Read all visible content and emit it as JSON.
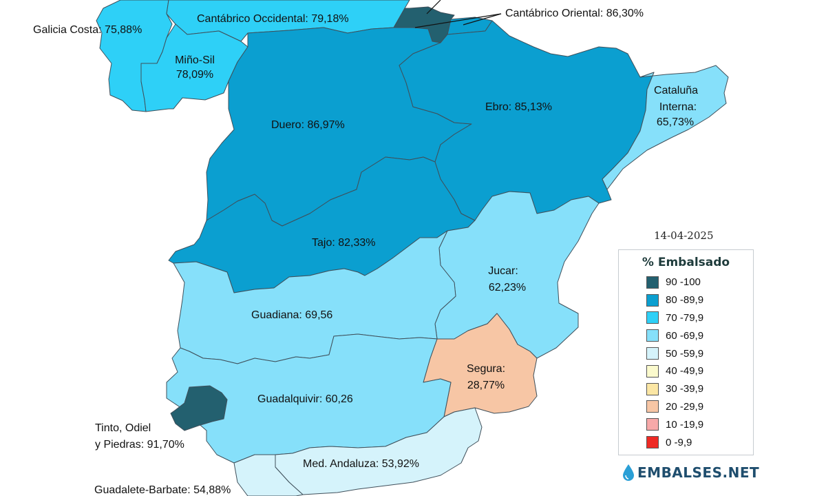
{
  "date": "14-04-2025",
  "legend": {
    "title": "% Embalsado",
    "items": [
      {
        "label": "90 -100",
        "color": "#23606f"
      },
      {
        "label": "80 -89,9",
        "color": "#0b9fd0"
      },
      {
        "label": "70 -79,9",
        "color": "#2ed0f7"
      },
      {
        "label": "60 -69,9",
        "color": "#86e0fa"
      },
      {
        "label": "50 -59,9",
        "color": "#d5f3fb"
      },
      {
        "label": "40 -49,9",
        "color": "#fbfacd"
      },
      {
        "label": "30 -39,9",
        "color": "#fbe6a4"
      },
      {
        "label": "20 -29,9",
        "color": "#f7c6a5"
      },
      {
        "label": "10 -19,9",
        "color": "#f7a9a9"
      },
      {
        "label": "0 -9,9",
        "color": "#ee2a24"
      }
    ]
  },
  "basins": {
    "galicia_costa": {
      "text": "Galicia Costa: 75,88%",
      "color": "#2ed0f7"
    },
    "cantabrico_occidental": {
      "text": "Cantábrico Occidental: 79,18%",
      "color": "#2ed0f7"
    },
    "cantabrico_oriental": {
      "text": "Cantábrico Oriental: 86,30%",
      "color": "#0b9fd0"
    },
    "basque_dark": {
      "color": "#23606f"
    },
    "mino_sil": {
      "line1": "Miño-Sil",
      "line2": "78,09%",
      "color": "#2ed0f7"
    },
    "duero": {
      "text": "Duero: 86,97%",
      "color": "#0b9fd0"
    },
    "ebro": {
      "text": "Ebro: 85,13%",
      "color": "#0b9fd0"
    },
    "cataluna_interna": {
      "line1": "Cataluña",
      "line2": "Interna:",
      "line3": "65,73%",
      "color": "#86e0fa"
    },
    "tajo": {
      "text": "Tajo: 82,33%",
      "color": "#0b9fd0"
    },
    "jucar": {
      "line1": "Jucar:",
      "line2": "62,23%",
      "color": "#86e0fa"
    },
    "guadiana": {
      "text": "Guadiana: 69,56",
      "color": "#86e0fa"
    },
    "segura": {
      "line1": "Segura:",
      "line2": "28,77%",
      "color": "#f7c6a5"
    },
    "guadalquivir": {
      "text": "Guadalquivir: 60,26",
      "color": "#86e0fa"
    },
    "tinto_odiel": {
      "line1": "Tinto, Odiel",
      "line2": "y Piedras: 91,70%",
      "color": "#23606f"
    },
    "med_andaluza": {
      "text": "Med. Andaluza: 53,92%",
      "color": "#d5f3fb"
    },
    "guadalete_barbate": {
      "text": "Guadalete-Barbate: 54,88%",
      "color": "#d5f3fb"
    }
  },
  "brand": {
    "text": "EMBALSES.NET",
    "icon": "water-drop-icon",
    "color": "#1f4e6e"
  }
}
